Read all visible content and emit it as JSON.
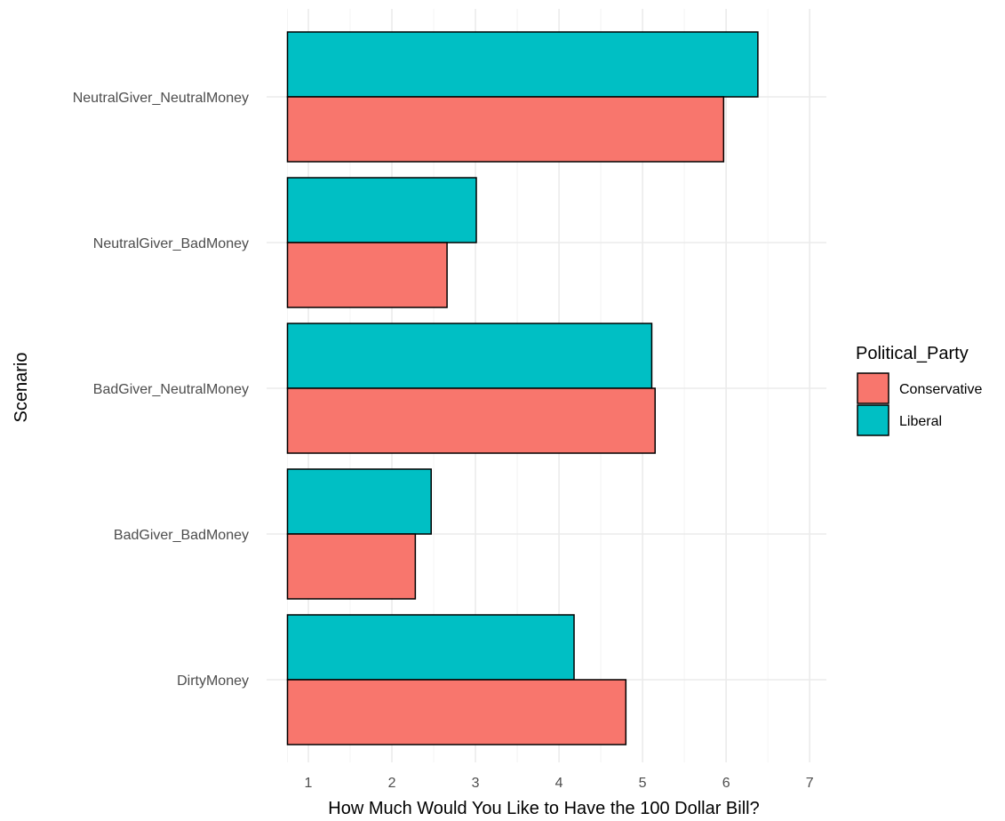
{
  "chart_data": {
    "type": "bar",
    "orientation": "horizontal",
    "categories": [
      "NeutralGiver_NeutralMoney",
      "NeutralGiver_BadMoney",
      "BadGiver_NeutralMoney",
      "BadGiver_BadMoney",
      "DirtyMoney"
    ],
    "series": [
      {
        "name": "Liberal",
        "color": "#00BFC4",
        "values": [
          6.38,
          3.01,
          5.11,
          2.47,
          4.18
        ]
      },
      {
        "name": "Conservative",
        "color": "#F8766D",
        "values": [
          5.97,
          2.66,
          5.15,
          2.28,
          4.8
        ]
      }
    ],
    "xlabel": "How Much Would You Like to Have the 100 Dollar Bill?",
    "ylabel": "Scenario",
    "xlim": [
      0.5,
      7.2
    ],
    "xticks": [
      1,
      2,
      3,
      4,
      5,
      6,
      7
    ],
    "legend": {
      "title": "Political_Party",
      "position": "right",
      "entries": [
        {
          "label": "Conservative",
          "color": "#F8766D"
        },
        {
          "label": "Liberal",
          "color": "#00BFC4"
        }
      ]
    },
    "grid": true
  }
}
